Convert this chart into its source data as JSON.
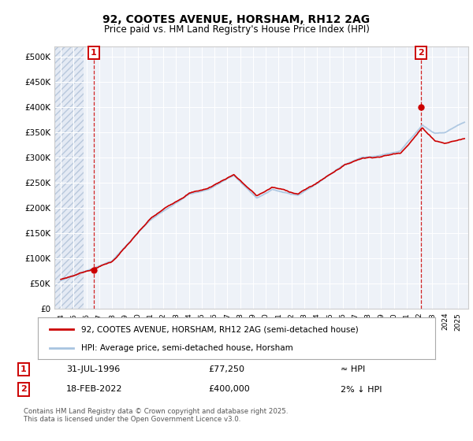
{
  "title_line1": "92, COOTES AVENUE, HORSHAM, RH12 2AG",
  "title_line2": "Price paid vs. HM Land Registry's House Price Index (HPI)",
  "ylim": [
    0,
    520000
  ],
  "yticks": [
    0,
    50000,
    100000,
    150000,
    200000,
    250000,
    300000,
    350000,
    400000,
    450000,
    500000
  ],
  "ytick_labels": [
    "£0",
    "£50K",
    "£100K",
    "£150K",
    "£200K",
    "£250K",
    "£300K",
    "£350K",
    "£400K",
    "£450K",
    "£500K"
  ],
  "xlim_start": 1993.5,
  "xlim_end": 2025.8,
  "xtick_years": [
    1994,
    1995,
    1996,
    1997,
    1998,
    1999,
    2000,
    2001,
    2002,
    2003,
    2004,
    2005,
    2006,
    2007,
    2008,
    2009,
    2010,
    2011,
    2012,
    2013,
    2014,
    2015,
    2016,
    2017,
    2018,
    2019,
    2020,
    2021,
    2022,
    2023,
    2024,
    2025
  ],
  "hpi_color": "#a8c4e0",
  "price_color": "#cc0000",
  "marker_color": "#cc0000",
  "ann_box_color": "#cc0000",
  "legend_label_price": "92, COOTES AVENUE, HORSHAM, RH12 2AG (semi-detached house)",
  "legend_label_hpi": "HPI: Average price, semi-detached house, Horsham",
  "annotation1_num": "1",
  "annotation1_date": "31-JUL-1996",
  "annotation1_price": "£77,250",
  "annotation1_hpi": "≈ HPI",
  "annotation2_num": "2",
  "annotation2_date": "18-FEB-2022",
  "annotation2_price": "£400,000",
  "annotation2_hpi": "2% ↓ HPI",
  "footnote": "Contains HM Land Registry data © Crown copyright and database right 2025.\nThis data is licensed under the Open Government Licence v3.0.",
  "background_color": "#ffffff",
  "plot_bg_color": "#eef2f8",
  "grid_color": "#ffffff",
  "point1_x": 1996.58,
  "point1_y": 77250,
  "point2_x": 2022.13,
  "point2_y": 400000,
  "hatch_end_x": 1995.8
}
